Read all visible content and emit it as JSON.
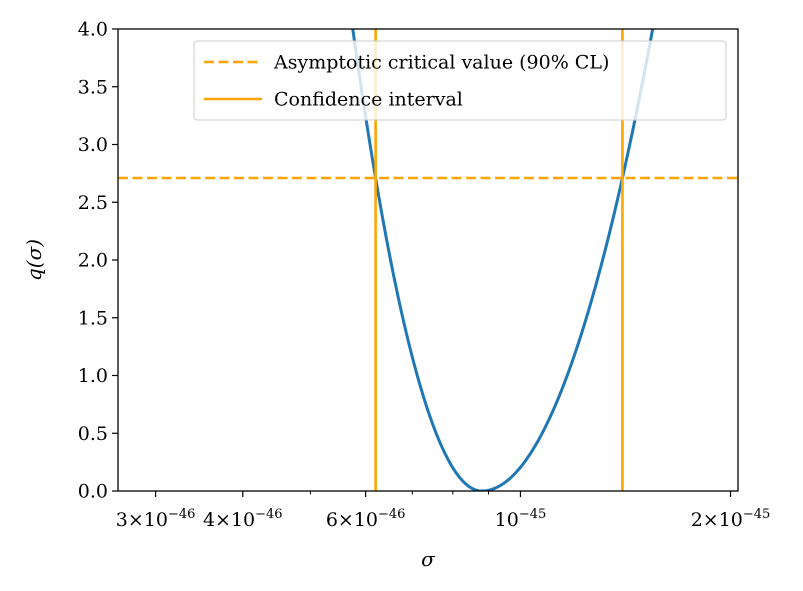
{
  "chart_data": {
    "type": "line",
    "xscale": "log",
    "xlim": [
      2.65e-46,
      2.05e-45
    ],
    "ylim": [
      0,
      4
    ],
    "xlabel": "σ",
    "ylabel": "q(σ)",
    "xticks": [
      {
        "value": 3e-46,
        "mantissa": "3",
        "exponent": "−46"
      },
      {
        "value": 4e-46,
        "mantissa": "4",
        "exponent": "−46"
      },
      {
        "value": 6e-46,
        "mantissa": "6",
        "exponent": "−46"
      },
      {
        "value": 1e-45,
        "mantissa": "",
        "exponent": "−45"
      },
      {
        "value": 2e-45,
        "mantissa": "2",
        "exponent": "−45"
      }
    ],
    "minor_xticks": [
      5e-46,
      7e-46,
      8e-46,
      9e-46
    ],
    "yticks": [
      "0.0",
      "0.5",
      "1.0",
      "1.5",
      "2.0",
      "2.5",
      "3.0",
      "3.5",
      "4.0"
    ],
    "curve": {
      "color": "#1f77b4",
      "minimum_sigma": 8.8e-46,
      "minimum_q": 0,
      "points": [
        [
          4.8e-46,
          4.0
        ],
        [
          5e-46,
          3.6
        ],
        [
          5.5e-46,
          2.95
        ],
        [
          6.2e-46,
          2.71
        ],
        [
          6.5e-46,
          2.2
        ],
        [
          7e-46,
          1.45
        ],
        [
          7.5e-46,
          0.85
        ],
        [
          8e-46,
          0.37
        ],
        [
          8.5e-46,
          0.07
        ],
        [
          8.8e-46,
          0.0
        ],
        [
          9.5e-46,
          0.15
        ],
        [
          1e-45,
          0.4
        ],
        [
          1.1e-45,
          0.95
        ],
        [
          1.2e-45,
          1.6
        ],
        [
          1.3e-45,
          2.15
        ],
        [
          1.4e-45,
          2.71
        ],
        [
          1.5e-45,
          3.5
        ],
        [
          1.6e-45,
          4.0
        ]
      ]
    },
    "critical_value": {
      "y": 2.71,
      "color": "#ffa500"
    },
    "confidence_interval": {
      "lower": 6.2e-46,
      "upper": 1.4e-45,
      "color": "#ffa500"
    },
    "legend": {
      "placement": "top-right",
      "entries": [
        {
          "label": "Asymptotic critical value (90% CL)",
          "style": "dashed",
          "color": "#ffa500"
        },
        {
          "label": "Confidence interval",
          "style": "solid",
          "color": "#ffa500"
        }
      ]
    },
    "grid": false
  }
}
